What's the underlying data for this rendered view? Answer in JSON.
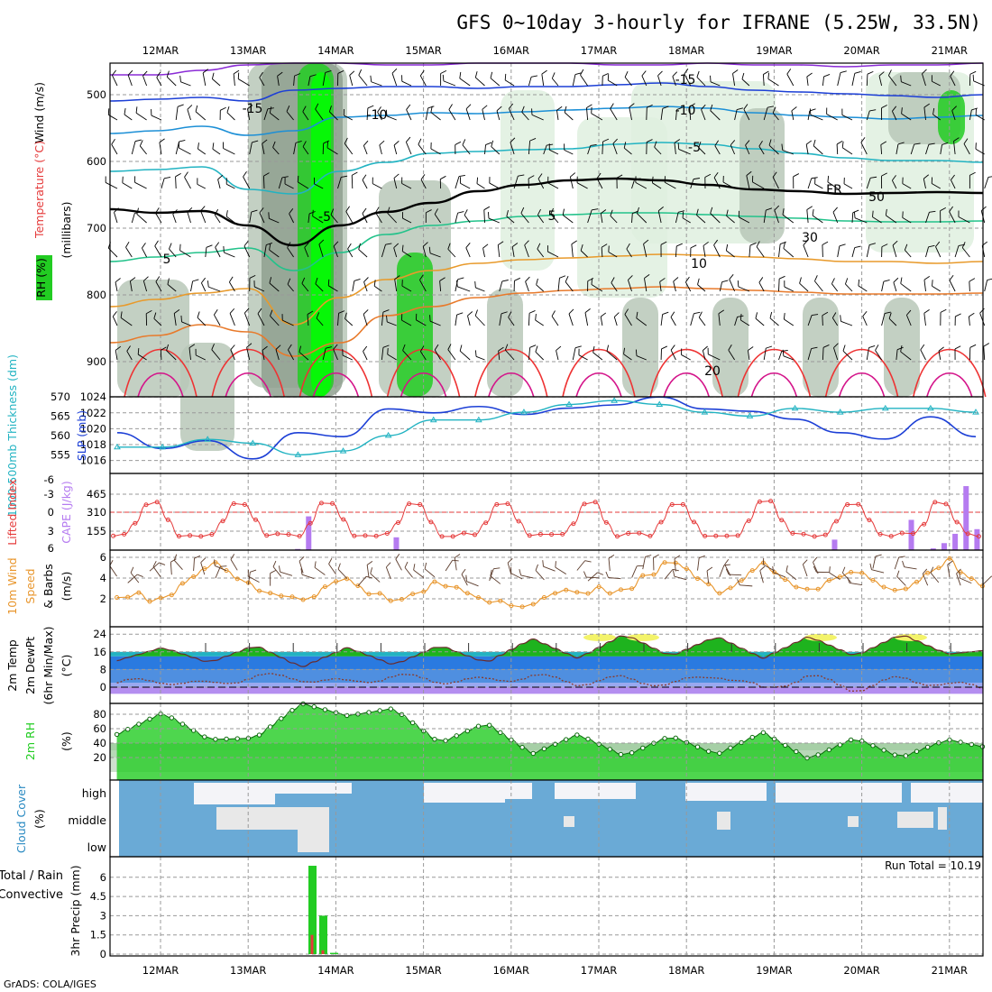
{
  "title": "GFS 0~10day 3-hourly for IFRANE (5.25W, 33.5N)",
  "credit": "GrADS: COLA/IGES",
  "dates": [
    "12MAR",
    "13MAR",
    "14MAR",
    "15MAR",
    "16MAR",
    "17MAR",
    "18MAR",
    "19MAR",
    "20MAR",
    "21MAR"
  ],
  "colors": {
    "rh_light": "#dff0df",
    "rh_mid": "#b8c8b8",
    "rh_dark": "#8fa08f",
    "rh_green": "#22cc22",
    "rh_bright": "#00ff00",
    "slp": "#1c3fd6",
    "thickness": "#22b3c2",
    "lifted_index": "#e53a3a",
    "cape": "#b57bf0",
    "wind_speed": "#e8952b",
    "temp_fill": "#1eb31e",
    "temp_hot": "#f3f36a",
    "dewpt": "#8a3a2a",
    "rh2m": "#22cc22",
    "cloud_blue": "#6aaad6",
    "cloud_gray": "#e8e8e8",
    "cloud_white": "#f4f4f8",
    "precip_total": "#22cc22",
    "precip_conv": "#e53a3a"
  },
  "panels": {
    "upper": {
      "label_wind": "Wind (m/s)",
      "label_temp": "Temperature (°C)",
      "label_mb": "(millibars)",
      "label_rh": "RH (%)",
      "yticks": [
        "500",
        "600",
        "700",
        "800",
        "900"
      ],
      "contour_labels": [
        "-15",
        "-15",
        "-10",
        "-10",
        "-5",
        "-5",
        "5",
        "5",
        "10",
        "20",
        "FR",
        "50",
        "30"
      ]
    },
    "slp": {
      "label_thick": "1000-500mb Thickness (dm)",
      "label_slp": "SLP (mb)",
      "thick_ticks": [
        "570",
        "565",
        "560",
        "555"
      ],
      "slp_ticks": [
        "1024",
        "1022",
        "1020",
        "1018",
        "1016"
      ]
    },
    "cape": {
      "label_li": "Lifted Index",
      "label_cape": "CAPE (J/kg)",
      "li_ticks": [
        "-6",
        "-3",
        "0",
        "3",
        "6"
      ],
      "cape_ticks": [
        "465",
        "310",
        "155"
      ]
    },
    "wind": {
      "label_10m": "10m Wind",
      "label_speed": "Speed",
      "label_barbs": "& Barbs",
      "label_unit": "(m/s)",
      "yticks": [
        "6",
        "4",
        "2"
      ]
    },
    "temp": {
      "label_temp": "2m Temp",
      "label_dew": "2m DewPt",
      "label_minmax": "(6hr Min/Max)",
      "label_unit": "(°C)",
      "yticks": [
        "24",
        "16",
        "8",
        "0"
      ]
    },
    "rh": {
      "label": "2m RH",
      "label_unit": "(%)",
      "yticks": [
        "80",
        "60",
        "40",
        "20"
      ]
    },
    "cloud": {
      "label": "Cloud Cover",
      "label_unit": "(%)",
      "levels": [
        "high",
        "middle",
        "low"
      ]
    },
    "precip": {
      "label_total": "Total / Rain",
      "label_conv": "Convective",
      "label_precip": "3hr Precip (mm)",
      "yticks": [
        "6",
        "4.5",
        "3",
        "1.5",
        "0"
      ],
      "run_total": "Run Total = 10.19"
    }
  },
  "chart_data": [
    {
      "type": "line",
      "title": "SLP (mb)",
      "x": [
        "12MAR 00Z",
        "12MAR 12Z",
        "13MAR 00Z",
        "13MAR 12Z",
        "14MAR 00Z",
        "14MAR 12Z",
        "15MAR 00Z",
        "15MAR 12Z",
        "16MAR 00Z",
        "16MAR 12Z",
        "17MAR 00Z",
        "17MAR 12Z",
        "18MAR 00Z",
        "18MAR 12Z",
        "19MAR 00Z",
        "19MAR 12Z",
        "20MAR 00Z",
        "20MAR 12Z",
        "21MAR 00Z",
        "21MAR 12Z"
      ],
      "series": [
        {
          "name": "SLP (mb)",
          "values": [
            1019.5,
            1017.5,
            1018.5,
            1016.2,
            1019.5,
            1019.0,
            1022.5,
            1022.0,
            1022.8,
            1021.8,
            1022.6,
            1023.0,
            1024.0,
            1022.5,
            1022.2,
            1021.2,
            1019.5,
            1018.7,
            1021.5,
            1019.0
          ]
        },
        {
          "name": "1000-500mb Thickness (dm)",
          "values": [
            557,
            557,
            559,
            558,
            555,
            556,
            560,
            564,
            564,
            566,
            568,
            569,
            568,
            566,
            565,
            567,
            566,
            567,
            567,
            566
          ]
        }
      ],
      "ylim": [
        1015,
        1025
      ]
    },
    {
      "type": "bar",
      "title": "CAPE (J/kg)",
      "categories": [
        "13MAR 15Z",
        "13MAR 18Z",
        "14MAR 18Z",
        "19MAR 18Z",
        "20MAR 18Z",
        "21MAR 03Z",
        "21MAR 06Z",
        "21MAR 09Z",
        "21MAR 12Z",
        "21MAR 15Z"
      ],
      "values": [
        10,
        290,
        110,
        90,
        260,
        15,
        60,
        140,
        550,
        180
      ],
      "ylim": [
        0,
        620
      ]
    },
    {
      "type": "line",
      "title": "10m Wind Speed (m/s)",
      "x": [
        "12MAR 00Z",
        "12MAR 12Z",
        "13MAR 00Z",
        "13MAR 12Z",
        "14MAR 00Z",
        "14MAR 12Z",
        "15MAR 00Z",
        "15MAR 12Z",
        "16MAR 00Z",
        "16MAR 12Z",
        "17MAR 00Z",
        "17MAR 12Z",
        "18MAR 00Z",
        "18MAR 12Z",
        "19MAR 00Z",
        "19MAR 12Z",
        "20MAR 00Z",
        "20MAR 12Z",
        "21MAR 00Z",
        "21MAR 12Z"
      ],
      "series": [
        {
          "name": "10m Wind Speed",
          "values": [
            2.5,
            2.0,
            5.5,
            3.0,
            2.0,
            4.0,
            1.5,
            3.5,
            2.0,
            1.5,
            3.0,
            2.5,
            6.0,
            2.5,
            5.5,
            2.5,
            5.0,
            2.5,
            5.8,
            2.5
          ]
        }
      ],
      "ylim": [
        0,
        6.5
      ]
    },
    {
      "type": "area",
      "title": "2m Temp (°C)",
      "x": [
        "12MAR 00Z",
        "12MAR 12Z",
        "13MAR 00Z",
        "13MAR 12Z",
        "14MAR 00Z",
        "14MAR 12Z",
        "15MAR 00Z",
        "15MAR 12Z",
        "16MAR 00Z",
        "16MAR 12Z",
        "17MAR 00Z",
        "17MAR 12Z",
        "18MAR 00Z",
        "18MAR 12Z",
        "19MAR 00Z",
        "19MAR 12Z",
        "20MAR 00Z",
        "20MAR 12Z",
        "21MAR 00Z",
        "21MAR 12Z"
      ],
      "series": [
        {
          "name": "2m Temp",
          "values": [
            12,
            18,
            11,
            19,
            9,
            18,
            10,
            19,
            11,
            22,
            13,
            24,
            14,
            23,
            13,
            23,
            14,
            24,
            15,
            17
          ]
        },
        {
          "name": "2m DewPt",
          "values": [
            2,
            3,
            1,
            5,
            4,
            2,
            5,
            3,
            3,
            5,
            2,
            4,
            1,
            6,
            -1,
            5,
            -1,
            4,
            1,
            0
          ]
        }
      ],
      "ylim": [
        -3,
        26
      ]
    },
    {
      "type": "area",
      "title": "2m RH (%)",
      "x": [
        "12MAR 00Z",
        "12MAR 12Z",
        "13MAR 00Z",
        "13MAR 12Z",
        "14MAR 00Z",
        "14MAR 12Z",
        "15MAR 00Z",
        "15MAR 12Z",
        "16MAR 00Z",
        "16MAR 12Z",
        "17MAR 00Z",
        "17MAR 12Z",
        "18MAR 00Z",
        "18MAR 12Z",
        "19MAR 00Z",
        "19MAR 12Z",
        "20MAR 00Z",
        "20MAR 12Z",
        "21MAR 00Z",
        "21MAR 12Z"
      ],
      "series": [
        {
          "name": "2m RH",
          "values": [
            52,
            82,
            45,
            47,
            95,
            78,
            88,
            40,
            68,
            25,
            52,
            22,
            50,
            24,
            55,
            18,
            47,
            20,
            45,
            32
          ]
        }
      ],
      "ylim": [
        0,
        100
      ]
    },
    {
      "type": "bar",
      "title": "3hr Precip (mm)",
      "categories": [
        "13MAR 18Z",
        "13MAR 21Z",
        "14MAR 00Z"
      ],
      "series": [
        {
          "name": "Total / Rain",
          "values": [
            6.9,
            3.0,
            0.1
          ]
        },
        {
          "name": "Convective",
          "values": [
            1.5,
            0.3,
            0.0
          ]
        }
      ],
      "ylim": [
        0,
        7.2
      ]
    }
  ]
}
